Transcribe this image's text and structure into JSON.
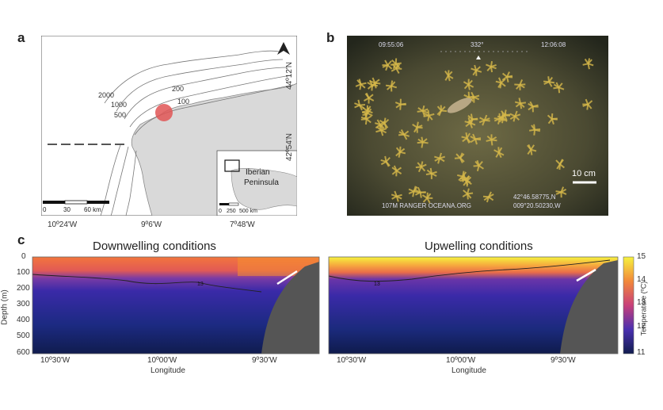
{
  "panel_labels": {
    "a": "a",
    "b": "b",
    "c": "c"
  },
  "map_a": {
    "lon_ticks": [
      "10º24'W",
      "9º6'W",
      "7º48'W"
    ],
    "lat_ticks": [
      "44º12'N",
      "42º54'N"
    ],
    "contours": [
      "2000",
      "1000",
      "500",
      "200",
      "100"
    ],
    "scale_labels": [
      "0",
      "30",
      "60 km"
    ],
    "inset_scale_labels": [
      "0",
      "250",
      "500 km"
    ],
    "inset_label": "Iberian Peninsula",
    "colors": {
      "land": "#d9d9d9",
      "study_site": "#e05555"
    }
  },
  "photo_b": {
    "hud_time": "09:55:06",
    "hud_heading": "332°",
    "hud_clock": "12:06:08",
    "scale_label": "10 cm",
    "coord_lat": "42°46.58775,N",
    "coord_lon": "009°20.50230,W",
    "vessel": "107M RANGER  OCEANA.ORG"
  },
  "chart_data": [
    {
      "type": "heatmap",
      "title": "Downwelling conditions",
      "xlabel": "Longitude",
      "ylabel": "Depth (m)",
      "x_ticks": [
        "10º30'W",
        "10º00'W",
        "9º30'W"
      ],
      "y_ticks": [
        "0",
        "100",
        "200",
        "300",
        "400",
        "500",
        "600"
      ],
      "ylim": [
        600,
        0
      ],
      "isotherm_label": "13"
    },
    {
      "type": "heatmap",
      "title": "Upwelling conditions",
      "xlabel": "Longitude",
      "x_ticks": [
        "10º30'W",
        "10º00'W",
        "9º30'W"
      ],
      "isotherm_label": "13"
    }
  ],
  "colorbar": {
    "label": "Temperature (ºC)",
    "ticks": [
      "15",
      "14",
      "13",
      "12",
      "11"
    ],
    "range": [
      11,
      15
    ]
  }
}
